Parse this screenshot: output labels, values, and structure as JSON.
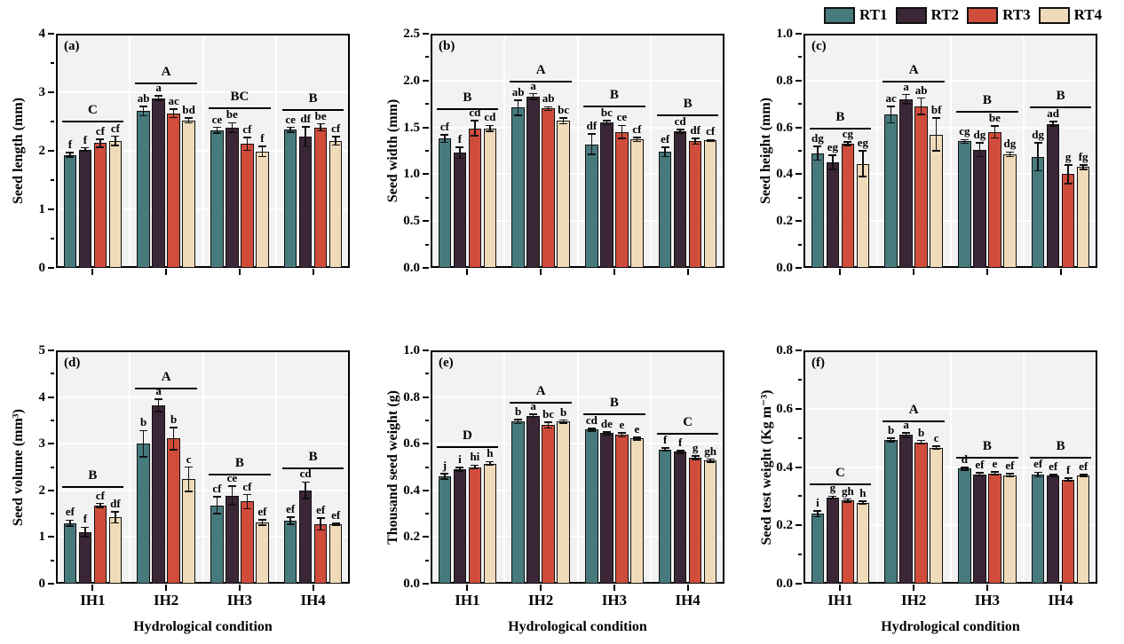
{
  "figure": {
    "x_axis_title": "Hydrological condition",
    "categories": [
      "IH1",
      "IH2",
      "IH3",
      "IH4"
    ],
    "legend_position": "top-right",
    "plot_background": "#f2f2f2",
    "gridline_color": "#ffffff",
    "series": [
      {
        "name": "RT1",
        "color": "#467a7d"
      },
      {
        "name": "RT2",
        "color": "#3b2637"
      },
      {
        "name": "RT3",
        "color": "#d04c3b"
      },
      {
        "name": "RT4",
        "color": "#efdbb9"
      }
    ]
  },
  "chart_data": [
    {
      "type": "bar",
      "panel_tag": "(a)",
      "ylabel": "Seed length (mm)",
      "ylim": [
        0,
        4
      ],
      "ytick_values": [
        0,
        1,
        2,
        3,
        4
      ],
      "ytick_labels": [
        "0",
        "1",
        "2",
        "3",
        "4"
      ],
      "minor_step": 0.5,
      "categories": [
        "IH1",
        "IH2",
        "IH3",
        "IH4"
      ],
      "grid": true,
      "brackets": [
        {
          "letter": "C",
          "y": 2.52
        },
        {
          "letter": "A",
          "y": 3.17
        },
        {
          "letter": "BC",
          "y": 2.75
        },
        {
          "letter": "B",
          "y": 2.71
        }
      ],
      "series": [
        {
          "name": "RT1",
          "values": [
            1.93,
            2.68,
            2.35,
            2.36
          ],
          "errors": [
            0.04,
            0.08,
            0.05,
            0.04
          ],
          "letters": [
            "f",
            "ab",
            "ce",
            "ce"
          ]
        },
        {
          "name": "RT2",
          "values": [
            2.02,
            2.9,
            2.4,
            2.24
          ],
          "errors": [
            0.03,
            0.04,
            0.08,
            0.17
          ],
          "letters": [
            "f",
            "a",
            "be",
            "df"
          ]
        },
        {
          "name": "RT3",
          "values": [
            2.13,
            2.64,
            2.12,
            2.4
          ],
          "errors": [
            0.07,
            0.07,
            0.11,
            0.06
          ],
          "letters": [
            "cf",
            "ac",
            "cf",
            "be"
          ]
        },
        {
          "name": "RT4",
          "values": [
            2.17,
            2.52,
            1.99,
            2.17
          ],
          "errors": [
            0.08,
            0.04,
            0.09,
            0.07
          ],
          "letters": [
            "cf",
            "bd",
            "f",
            "cf"
          ]
        }
      ]
    },
    {
      "type": "bar",
      "panel_tag": "(b)",
      "ylabel": "Seed width (mm)",
      "ylim": [
        0,
        2.5
      ],
      "ytick_values": [
        0,
        0.5,
        1.0,
        1.5,
        2.0,
        2.5
      ],
      "ytick_labels": [
        "0.0",
        "0.5",
        "1.0",
        "1.5",
        "2.0",
        "2.5"
      ],
      "minor_step": 0.25,
      "categories": [
        "IH1",
        "IH2",
        "IH3",
        "IH4"
      ],
      "grid": true,
      "brackets": [
        {
          "letter": "B",
          "y": 1.7
        },
        {
          "letter": "A",
          "y": 2.0
        },
        {
          "letter": "B",
          "y": 1.73
        },
        {
          "letter": "B",
          "y": 1.64
        }
      ],
      "series": [
        {
          "name": "RT1",
          "values": [
            1.38,
            1.71,
            1.32,
            1.24
          ],
          "errors": [
            0.04,
            0.08,
            0.11,
            0.05
          ],
          "letters": [
            "cf",
            "ab",
            "df",
            "ef"
          ]
        },
        {
          "name": "RT2",
          "values": [
            1.23,
            1.83,
            1.55,
            1.46
          ],
          "errors": [
            0.06,
            0.03,
            0.02,
            0.02
          ],
          "letters": [
            "f",
            "a",
            "bc",
            "cd"
          ]
        },
        {
          "name": "RT3",
          "values": [
            1.49,
            1.7,
            1.45,
            1.35
          ],
          "errors": [
            0.08,
            0.02,
            0.07,
            0.03
          ],
          "letters": [
            "cd",
            "ab",
            "ce",
            "df"
          ]
        },
        {
          "name": "RT4",
          "values": [
            1.49,
            1.57,
            1.37,
            1.36
          ],
          "errors": [
            0.03,
            0.03,
            0.02,
            0.01
          ],
          "letters": [
            "cd",
            "bc",
            "cf",
            "cf"
          ]
        }
      ]
    },
    {
      "type": "bar",
      "panel_tag": "(c)",
      "ylabel": "Seed height (mm)",
      "ylim": [
        0,
        1.0
      ],
      "ytick_values": [
        0,
        0.2,
        0.4,
        0.6,
        0.8,
        1.0
      ],
      "ytick_labels": [
        "0.0",
        "0.2",
        "0.4",
        "0.6",
        "0.8",
        "1.0"
      ],
      "minor_step": 0.1,
      "categories": [
        "IH1",
        "IH2",
        "IH3",
        "IH4"
      ],
      "grid": true,
      "brackets": [
        {
          "letter": "B",
          "y": 0.6
        },
        {
          "letter": "A",
          "y": 0.8
        },
        {
          "letter": "B",
          "y": 0.67
        },
        {
          "letter": "B",
          "y": 0.69
        }
      ],
      "series": [
        {
          "name": "RT1",
          "values": [
            0.49,
            0.655,
            0.54,
            0.475
          ],
          "errors": [
            0.03,
            0.035,
            0.008,
            0.06
          ],
          "letters": [
            "dg",
            "ac",
            "cg",
            "dg"
          ]
        },
        {
          "name": "RT2",
          "values": [
            0.45,
            0.72,
            0.505,
            0.615
          ],
          "errors": [
            0.03,
            0.02,
            0.03,
            0.01
          ],
          "letters": [
            "eg",
            "a",
            "dg",
            "ad"
          ]
        },
        {
          "name": "RT3",
          "values": [
            0.53,
            0.69,
            0.58,
            0.4
          ],
          "errors": [
            0.008,
            0.035,
            0.025,
            0.04
          ],
          "letters": [
            "cg",
            "ab",
            "be",
            "g"
          ]
        },
        {
          "name": "RT4",
          "values": [
            0.445,
            0.57,
            0.485,
            0.43
          ],
          "errors": [
            0.055,
            0.07,
            0.01,
            0.01
          ],
          "letters": [
            "eg",
            "bf",
            "dg",
            "fg"
          ]
        }
      ]
    },
    {
      "type": "bar",
      "panel_tag": "(d)",
      "ylabel": "Seed volume (mm³)",
      "ylim": [
        0,
        5
      ],
      "ytick_values": [
        0,
        1,
        2,
        3,
        4,
        5
      ],
      "ytick_labels": [
        "0",
        "1",
        "2",
        "3",
        "4",
        "5"
      ],
      "minor_step": 0.5,
      "categories": [
        "IH1",
        "IH2",
        "IH3",
        "IH4"
      ],
      "grid": true,
      "brackets": [
        {
          "letter": "B",
          "y": 2.1
        },
        {
          "letter": "A",
          "y": 4.2
        },
        {
          "letter": "B",
          "y": 2.35
        },
        {
          "letter": "B",
          "y": 2.5
        }
      ],
      "series": [
        {
          "name": "RT1",
          "values": [
            1.3,
            3.0,
            1.68,
            1.35
          ],
          "errors": [
            0.06,
            0.28,
            0.18,
            0.08
          ],
          "letters": [
            "ef",
            "b",
            "cf",
            "ef"
          ]
        },
        {
          "name": "RT2",
          "values": [
            1.11,
            3.82,
            1.89,
            2.0
          ],
          "errors": [
            0.1,
            0.13,
            0.2,
            0.18
          ],
          "letters": [
            "f",
            "a",
            "ce",
            "cd"
          ]
        },
        {
          "name": "RT3",
          "values": [
            1.68,
            3.11,
            1.76,
            1.28
          ],
          "errors": [
            0.04,
            0.24,
            0.15,
            0.13
          ],
          "letters": [
            "cf",
            "b",
            "cf",
            "ef"
          ]
        },
        {
          "name": "RT4",
          "values": [
            1.42,
            2.24,
            1.31,
            1.27
          ],
          "errors": [
            0.12,
            0.26,
            0.06,
            0.02
          ],
          "letters": [
            "df",
            "c",
            "ef",
            "ef"
          ]
        }
      ]
    },
    {
      "type": "bar",
      "panel_tag": "(e)",
      "ylabel": "Thousand seed weight (g)",
      "ylim": [
        0,
        1.0
      ],
      "ytick_values": [
        0,
        0.2,
        0.4,
        0.6,
        0.8,
        1.0
      ],
      "ytick_labels": [
        "0.0",
        "0.2",
        "0.4",
        "0.6",
        "0.8",
        "1.0"
      ],
      "minor_step": 0.1,
      "categories": [
        "IH1",
        "IH2",
        "IH3",
        "IH4"
      ],
      "grid": true,
      "brackets": [
        {
          "letter": "D",
          "y": 0.59
        },
        {
          "letter": "A",
          "y": 0.78
        },
        {
          "letter": "B",
          "y": 0.73
        },
        {
          "letter": "C",
          "y": 0.645
        }
      ],
      "series": [
        {
          "name": "RT1",
          "values": [
            0.46,
            0.695,
            0.66,
            0.575
          ],
          "errors": [
            0.012,
            0.008,
            0.006,
            0.006
          ],
          "letters": [
            "j",
            "b",
            "cd",
            "f"
          ]
        },
        {
          "name": "RT2",
          "values": [
            0.49,
            0.72,
            0.645,
            0.565
          ],
          "errors": [
            0.008,
            0.006,
            0.006,
            0.006
          ],
          "letters": [
            "i",
            "a",
            "de",
            "f"
          ]
        },
        {
          "name": "RT3",
          "values": [
            0.5,
            0.68,
            0.638,
            0.54
          ],
          "errors": [
            0.008,
            0.012,
            0.008,
            0.008
          ],
          "letters": [
            "hi",
            "bc",
            "e",
            "g"
          ]
        },
        {
          "name": "RT4",
          "values": [
            0.515,
            0.695,
            0.622,
            0.528
          ],
          "errors": [
            0.008,
            0.006,
            0.006,
            0.006
          ],
          "letters": [
            "h",
            "b",
            "e",
            "gh"
          ]
        }
      ]
    },
    {
      "type": "bar",
      "panel_tag": "(f)",
      "ylabel": "Seed test weight (Kg m⁻³)",
      "ylim": [
        0,
        0.8
      ],
      "ytick_values": [
        0,
        0.2,
        0.4,
        0.6,
        0.8
      ],
      "ytick_labels": [
        "0.0",
        "0.2",
        "0.4",
        "0.6",
        "0.8"
      ],
      "minor_step": 0.1,
      "categories": [
        "IH1",
        "IH2",
        "IH3",
        "IH4"
      ],
      "grid": true,
      "brackets": [
        {
          "letter": "C",
          "y": 0.345
        },
        {
          "letter": "A",
          "y": 0.56
        },
        {
          "letter": "B",
          "y": 0.435
        },
        {
          "letter": "B",
          "y": 0.435
        }
      ],
      "series": [
        {
          "name": "RT1",
          "values": [
            0.24,
            0.493,
            0.394,
            0.374
          ],
          "errors": [
            0.01,
            0.006,
            0.005,
            0.008
          ],
          "letters": [
            "i",
            "b",
            "d",
            "ef"
          ]
        },
        {
          "name": "RT2",
          "values": [
            0.295,
            0.51,
            0.375,
            0.37
          ],
          "errors": [
            0.005,
            0.008,
            0.005,
            0.004
          ],
          "letters": [
            "g",
            "a",
            "ef",
            "ef"
          ]
        },
        {
          "name": "RT3",
          "values": [
            0.285,
            0.485,
            0.378,
            0.357
          ],
          "errors": [
            0.005,
            0.006,
            0.005,
            0.005
          ],
          "letters": [
            "gh",
            "b",
            "e",
            "f"
          ]
        },
        {
          "name": "RT4",
          "values": [
            0.278,
            0.466,
            0.372,
            0.37
          ],
          "errors": [
            0.005,
            0.005,
            0.005,
            0.004
          ],
          "letters": [
            "h",
            "c",
            "ef",
            "ef"
          ]
        }
      ]
    }
  ]
}
